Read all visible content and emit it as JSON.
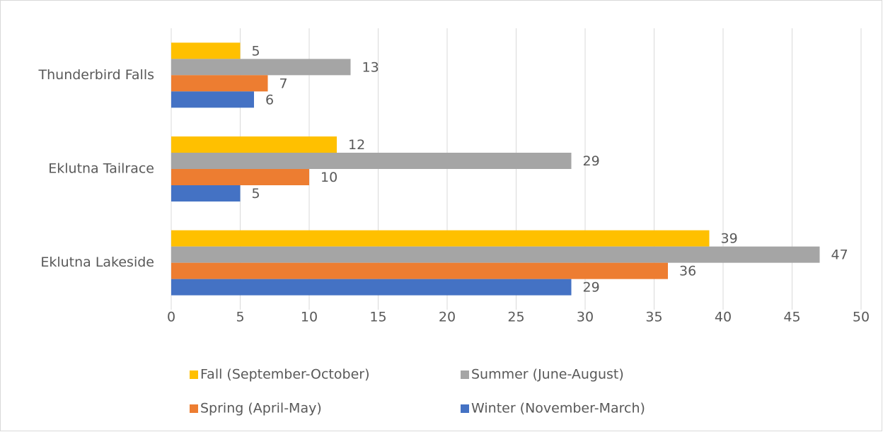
{
  "chart_data": {
    "type": "bar",
    "orientation": "horizontal",
    "categories": [
      "Thunderbird Falls",
      "Eklutna Tailrace",
      "Eklutna Lakeside"
    ],
    "series": [
      {
        "name": "Fall (September-October)",
        "color": "#FFC000",
        "values": [
          5,
          12,
          39
        ]
      },
      {
        "name": "Summer (June-August)",
        "color": "#A5A5A5",
        "values": [
          13,
          29,
          47
        ]
      },
      {
        "name": "Spring (April-May)",
        "color": "#ED7D31",
        "values": [
          7,
          10,
          36
        ]
      },
      {
        "name": "Winter (November-March)",
        "color": "#4472C4",
        "values": [
          6,
          5,
          29
        ]
      }
    ],
    "xlim": [
      0,
      50
    ],
    "xticks": [
      0,
      5,
      10,
      15,
      20,
      25,
      30,
      35,
      40,
      45,
      50
    ],
    "grid": true,
    "legend": "bottom"
  }
}
